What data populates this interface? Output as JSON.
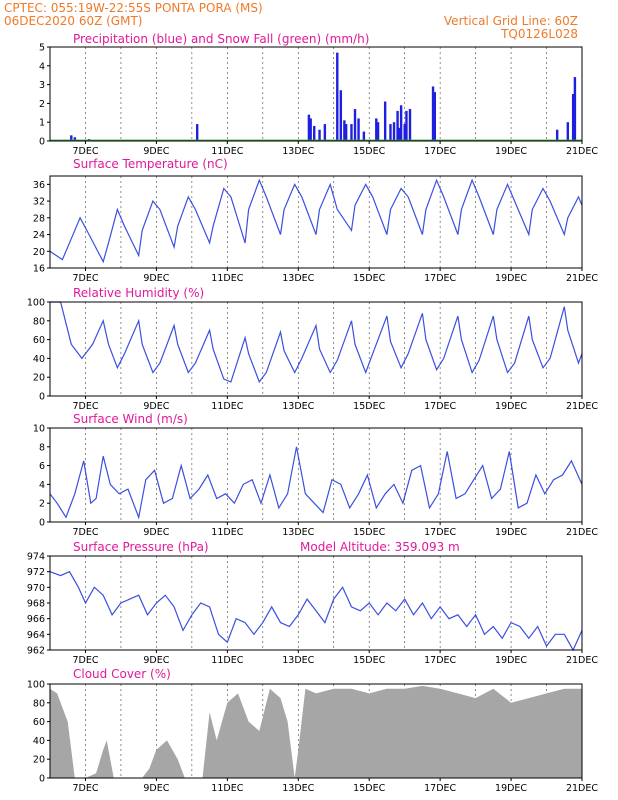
{
  "header": {
    "line1_left": "CPTEC:   055:19W-22:55S   PONTA PORA (MS)",
    "line2_left": "06DEC2020 60Z (GMT)",
    "line1_right": "Vertical Grid Line: 60Z",
    "line2_right": "TQ0126L028"
  },
  "colors": {
    "precip": "#1f1fe0",
    "snow": "#2da02d",
    "line": "#3b4fe0",
    "cloud": "#a6a6a6",
    "title": "#e0199a",
    "header": "#ee7a2a"
  },
  "chart_data": [
    {
      "type": "bar",
      "title": "Precipitation (blue) and Snow Fall (green) (mm/h)",
      "ylim": [
        0,
        5
      ],
      "yticks": [
        "0",
        "1",
        "2",
        "3",
        "4",
        "5"
      ],
      "xticks": [
        "7DEC",
        "9DEC",
        "11DEC",
        "13DEC",
        "15DEC",
        "17DEC",
        "19DEC",
        "21DEC"
      ],
      "grid": "vertical dashed",
      "series": [
        {
          "name": "Precipitation",
          "x": [
            6.6,
            6.7,
            7.1,
            10.15,
            13.3,
            13.35,
            13.45,
            13.6,
            13.75,
            14.1,
            14.2,
            14.3,
            14.35,
            14.5,
            14.6,
            14.7,
            14.85,
            15.2,
            15.25,
            15.45,
            15.6,
            15.7,
            15.8,
            15.85,
            15.9,
            16.0,
            16.05,
            16.15,
            16.8,
            16.85,
            20.3,
            20.6,
            20.75,
            20.8
          ],
          "values": [
            0.3,
            0.2,
            0.1,
            0.9,
            1.4,
            1.2,
            0.8,
            0.6,
            0.9,
            4.7,
            2.7,
            1.1,
            0.9,
            0.9,
            1.7,
            1.2,
            0.5,
            1.2,
            1.0,
            2.1,
            0.9,
            1.0,
            1.6,
            0.7,
            1.9,
            0.9,
            1.6,
            1.7,
            2.9,
            2.6,
            0.6,
            1.0,
            2.5,
            3.4
          ]
        },
        {
          "name": "Snow Fall",
          "x": [],
          "values": []
        }
      ]
    },
    {
      "type": "line",
      "title": "Surface Temperature (nC)",
      "ylim": [
        16,
        38
      ],
      "yticks": [
        "16",
        "20",
        "24",
        "28",
        "32",
        "36"
      ],
      "xticks": [
        "7DEC",
        "9DEC",
        "11DEC",
        "13DEC",
        "15DEC",
        "17DEC",
        "19DEC",
        "21DEC"
      ],
      "x": [
        6.0,
        6.35,
        6.6,
        6.85,
        7.1,
        7.5,
        7.65,
        7.9,
        8.1,
        8.5,
        8.6,
        8.9,
        9.1,
        9.5,
        9.6,
        9.9,
        10.1,
        10.5,
        10.6,
        10.9,
        11.1,
        11.5,
        11.6,
        11.9,
        12.1,
        12.5,
        12.6,
        12.9,
        13.1,
        13.5,
        13.6,
        13.9,
        14.1,
        14.5,
        14.6,
        14.9,
        15.1,
        15.5,
        15.6,
        15.9,
        16.1,
        16.5,
        16.6,
        16.9,
        17.1,
        17.5,
        17.6,
        17.9,
        18.1,
        18.5,
        18.6,
        18.9,
        19.1,
        19.5,
        19.6,
        19.9,
        20.1,
        20.5,
        20.6,
        20.9,
        21.0
      ],
      "values": [
        20,
        18,
        23,
        28,
        24,
        17.5,
        22,
        30,
        26,
        19,
        25,
        32,
        30,
        21,
        26,
        33,
        30,
        22,
        26,
        35,
        33,
        22,
        30,
        37,
        33,
        24,
        30,
        36,
        33,
        24,
        30,
        36,
        30,
        25,
        31,
        36,
        33,
        24,
        30,
        35,
        33,
        24,
        30,
        37,
        33,
        24,
        30,
        37,
        33,
        24,
        30,
        36,
        32,
        24,
        30,
        35,
        32,
        24,
        28,
        33,
        31
      ],
      "ylabel": ""
    },
    {
      "type": "line",
      "title": "Relative Humidity (%)",
      "ylim": [
        0,
        100
      ],
      "yticks": [
        "0",
        "20",
        "40",
        "60",
        "80",
        "100"
      ],
      "xticks": [
        "7DEC",
        "9DEC",
        "11DEC",
        "13DEC",
        "15DEC",
        "17DEC",
        "19DEC",
        "21DEC"
      ],
      "x": [
        6.0,
        6.3,
        6.6,
        6.9,
        7.2,
        7.5,
        7.65,
        7.9,
        8.1,
        8.5,
        8.6,
        8.9,
        9.1,
        9.5,
        9.6,
        9.9,
        10.1,
        10.5,
        10.6,
        10.9,
        11.1,
        11.5,
        11.6,
        11.9,
        12.1,
        12.5,
        12.6,
        12.9,
        13.1,
        13.5,
        13.6,
        13.9,
        14.1,
        14.5,
        14.6,
        14.9,
        15.1,
        15.5,
        15.6,
        15.9,
        16.1,
        16.5,
        16.6,
        16.9,
        17.1,
        17.5,
        17.6,
        17.9,
        18.1,
        18.5,
        18.6,
        18.9,
        19.1,
        19.5,
        19.6,
        19.9,
        20.1,
        20.5,
        20.6,
        20.9,
        21.0
      ],
      "values": [
        100,
        100,
        55,
        40,
        55,
        80,
        55,
        30,
        45,
        80,
        55,
        25,
        35,
        75,
        55,
        25,
        35,
        70,
        50,
        18,
        15,
        62,
        45,
        15,
        25,
        68,
        48,
        25,
        40,
        75,
        50,
        25,
        38,
        80,
        55,
        25,
        45,
        85,
        58,
        30,
        45,
        88,
        60,
        28,
        40,
        85,
        60,
        25,
        38,
        85,
        60,
        25,
        35,
        85,
        60,
        30,
        40,
        95,
        70,
        35,
        45
      ],
      "ylabel": ""
    },
    {
      "type": "line",
      "title": "Surface Wind (m/s)",
      "ylim": [
        0,
        10
      ],
      "yticks": [
        "0",
        "2",
        "4",
        "6",
        "8",
        "10"
      ],
      "xticks": [
        "7DEC",
        "9DEC",
        "11DEC",
        "13DEC",
        "15DEC",
        "17DEC",
        "19DEC",
        "21DEC"
      ],
      "x": [
        6.0,
        6.2,
        6.45,
        6.7,
        6.95,
        7.15,
        7.3,
        7.5,
        7.7,
        7.95,
        8.2,
        8.5,
        8.7,
        8.95,
        9.2,
        9.45,
        9.7,
        9.95,
        10.2,
        10.45,
        10.7,
        10.95,
        11.2,
        11.45,
        11.7,
        11.95,
        12.2,
        12.45,
        12.7,
        12.95,
        13.2,
        13.45,
        13.7,
        13.95,
        14.2,
        14.45,
        14.7,
        14.95,
        15.2,
        15.45,
        15.7,
        15.95,
        16.2,
        16.45,
        16.7,
        16.95,
        17.2,
        17.45,
        17.7,
        17.95,
        18.2,
        18.45,
        18.7,
        18.95,
        19.2,
        19.45,
        19.7,
        19.95,
        20.2,
        20.45,
        20.7,
        21.0
      ],
      "values": [
        3,
        2,
        0.5,
        3,
        6.5,
        2,
        2.5,
        7,
        4,
        3,
        3.5,
        0.5,
        4.5,
        5.5,
        2,
        2.5,
        6,
        2.5,
        3.5,
        5,
        2.5,
        3,
        2,
        4,
        4.5,
        2,
        5,
        1.5,
        3,
        8,
        3,
        2,
        1,
        4.5,
        4,
        1.5,
        3,
        5,
        1.5,
        3,
        4,
        2,
        5.5,
        6,
        1.5,
        3,
        7.5,
        2.5,
        3,
        4.5,
        6,
        2.5,
        3.5,
        7.5,
        1.5,
        2,
        5,
        3,
        4.5,
        5,
        6.5,
        4
      ],
      "ylabel": ""
    },
    {
      "type": "line",
      "title": "Surface Pressure (hPa)",
      "annotation": "Model Altitude: 359.093 m",
      "ylim": [
        962,
        974
      ],
      "yticks": [
        "962",
        "964",
        "966",
        "968",
        "970",
        "972",
        "974"
      ],
      "xticks": [
        "7DEC",
        "9DEC",
        "11DEC",
        "13DEC",
        "15DEC",
        "17DEC",
        "19DEC",
        "21DEC"
      ],
      "x": [
        6.0,
        6.3,
        6.55,
        6.8,
        7.0,
        7.25,
        7.5,
        7.75,
        8.0,
        8.25,
        8.5,
        8.75,
        9.0,
        9.25,
        9.5,
        9.75,
        10.0,
        10.25,
        10.5,
        10.75,
        11.0,
        11.25,
        11.5,
        11.75,
        12.0,
        12.25,
        12.5,
        12.75,
        13.0,
        13.25,
        13.5,
        13.75,
        14.0,
        14.25,
        14.5,
        14.75,
        15.0,
        15.25,
        15.5,
        15.75,
        16.0,
        16.25,
        16.5,
        16.75,
        17.0,
        17.25,
        17.5,
        17.75,
        18.0,
        18.25,
        18.5,
        18.75,
        19.0,
        19.25,
        19.5,
        19.75,
        20.0,
        20.25,
        20.5,
        20.75,
        21.0
      ],
      "values": [
        972,
        971.5,
        972,
        970,
        968,
        970,
        969,
        966.5,
        968,
        968.5,
        969,
        966.5,
        968,
        969,
        967.5,
        964.5,
        966.5,
        968,
        967.5,
        964,
        963,
        966,
        965.5,
        964,
        965.5,
        967.5,
        965.5,
        965,
        966.5,
        968.5,
        967,
        965.5,
        968.5,
        970,
        967.5,
        967,
        968,
        966.5,
        968,
        967,
        968.5,
        966.5,
        968,
        966,
        967.5,
        966,
        966.5,
        965,
        966.5,
        964,
        965,
        963.5,
        965.5,
        965,
        963.5,
        965,
        962.5,
        964,
        964,
        962,
        964.5
      ],
      "ylabel": ""
    },
    {
      "type": "area",
      "title": "Cloud Cover (%)",
      "ylim": [
        0,
        100
      ],
      "yticks": [
        "0",
        "20",
        "40",
        "60",
        "80",
        "100"
      ],
      "xticks": [
        "7DEC",
        "9DEC",
        "11DEC",
        "13DEC",
        "15DEC",
        "17DEC",
        "19DEC",
        "21DEC"
      ],
      "x": [
        6.0,
        6.2,
        6.5,
        6.7,
        6.8,
        7.0,
        7.3,
        7.5,
        7.6,
        7.8,
        8.0,
        8.3,
        8.6,
        8.8,
        9.0,
        9.3,
        9.6,
        9.8,
        10.0,
        10.3,
        10.5,
        10.7,
        11.0,
        11.3,
        11.6,
        11.9,
        12.2,
        12.5,
        12.7,
        12.9,
        13.0,
        13.2,
        13.5,
        14.0,
        14.5,
        15.0,
        15.5,
        16.0,
        16.5,
        17.0,
        17.5,
        18.0,
        18.5,
        19.0,
        19.5,
        20.0,
        20.5,
        21.0
      ],
      "values": [
        95,
        90,
        60,
        0,
        0,
        0,
        5,
        30,
        40,
        0,
        0,
        0,
        0,
        10,
        30,
        40,
        20,
        0,
        0,
        0,
        70,
        40,
        80,
        90,
        60,
        50,
        95,
        85,
        60,
        0,
        30,
        95,
        90,
        95,
        95,
        90,
        95,
        95,
        98,
        95,
        90,
        85,
        95,
        80,
        85,
        90,
        95,
        95
      ],
      "ylabel": ""
    }
  ]
}
